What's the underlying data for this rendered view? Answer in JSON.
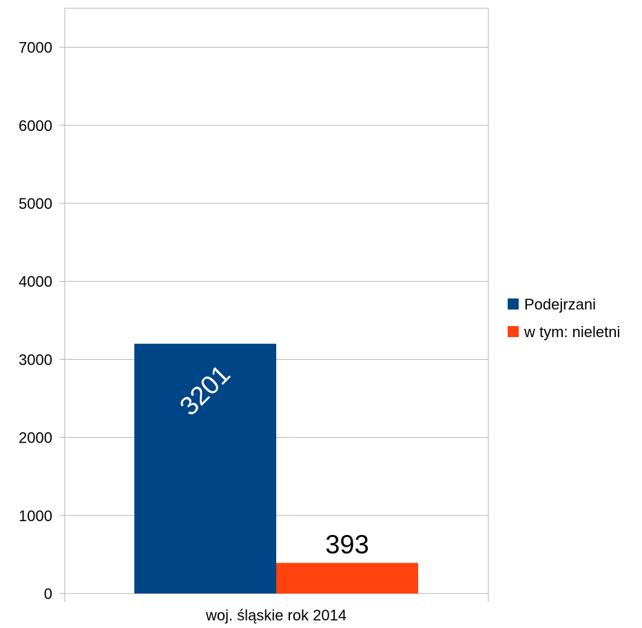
{
  "chart_data": {
    "type": "bar",
    "categories": [
      "woj. śląskie rok 2014"
    ],
    "series": [
      {
        "name": "Podejrzani",
        "values": [
          3201
        ],
        "color": "#004586"
      },
      {
        "name": "w tym: nieletni",
        "values": [
          393
        ],
        "color": "#ff420e"
      }
    ],
    "data_labels": [
      "3201",
      "393"
    ],
    "yticks": [
      "0",
      "1000",
      "2000",
      "3000",
      "4000",
      "5000",
      "6000",
      "7000"
    ],
    "ylim": [
      0,
      7500
    ],
    "grid": true,
    "legend": "right",
    "gridline_color": "#b3b3b3",
    "text_color": "#000000",
    "label_on_bar_color": "#ffffff"
  }
}
